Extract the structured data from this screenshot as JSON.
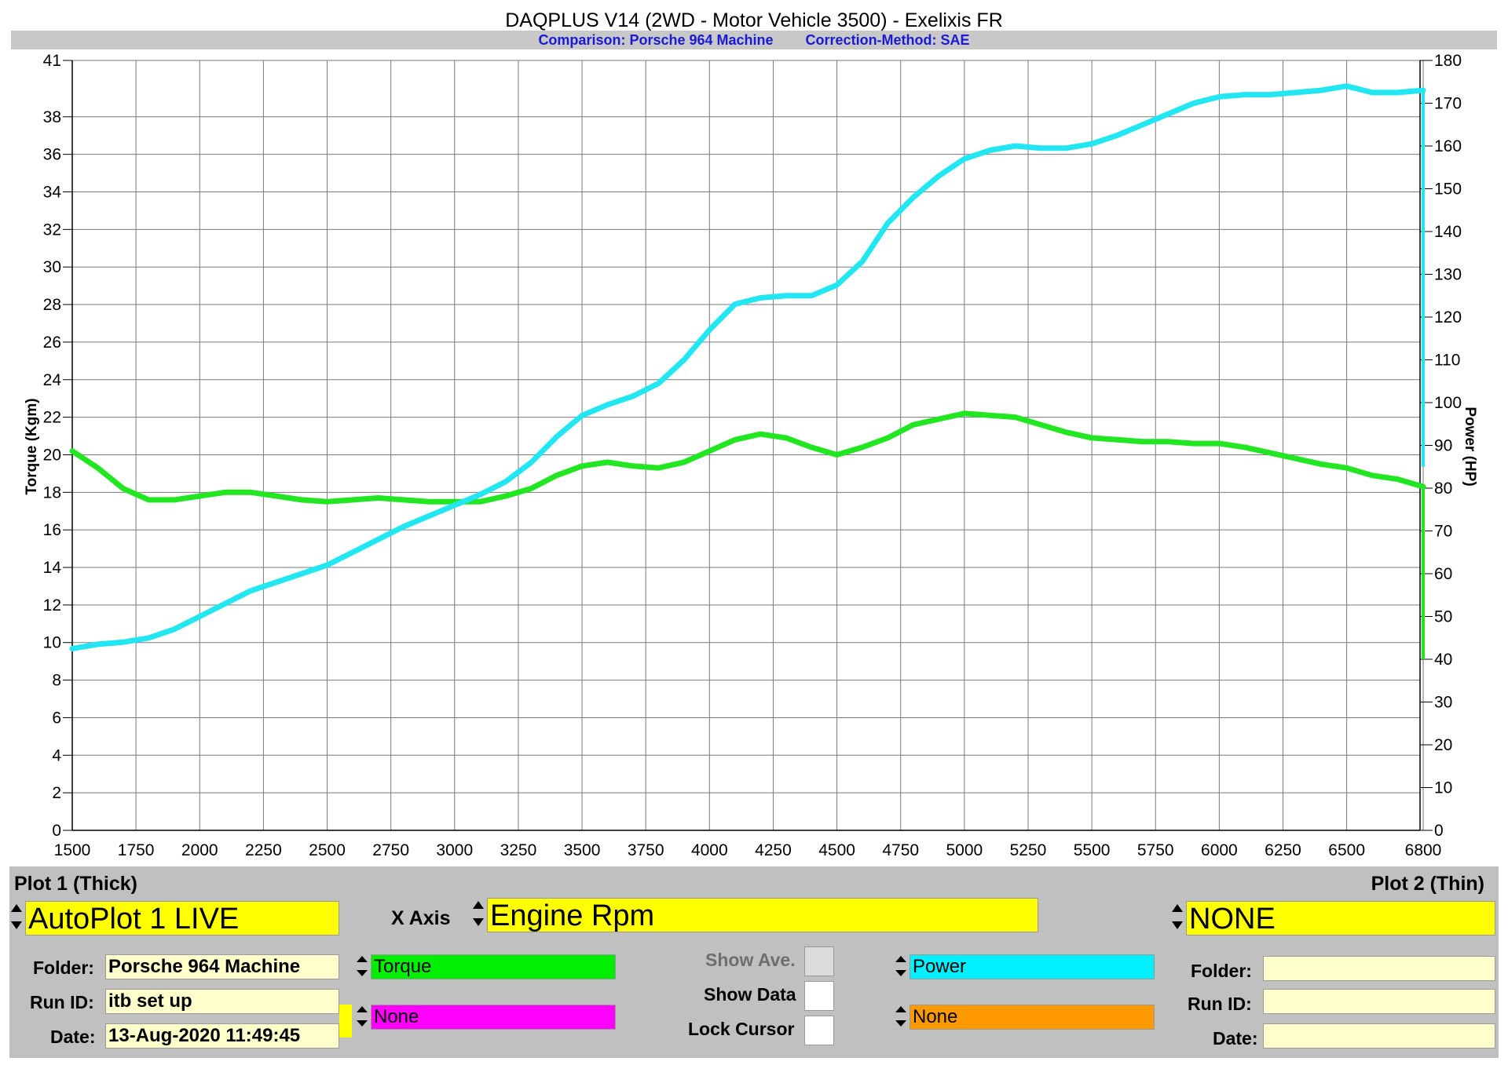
{
  "header": {
    "title": "DAQPLUS V14 (2WD - Motor Vehicle 3500) - Exelixis FR",
    "comparison": "Comparison: Porsche 964 Machine",
    "correction": "Correction-Method: SAE"
  },
  "chart_data": {
    "type": "line",
    "xlabel": "",
    "ylabel_left": "Torque (Kgm)",
    "ylabel_right": "Power (HP)",
    "xlim": [
      1500,
      6800
    ],
    "ylim_left": [
      0,
      41
    ],
    "ylim_right": [
      0,
      180
    ],
    "x_ticks": [
      1500,
      1750,
      2000,
      2250,
      2500,
      2750,
      3000,
      3250,
      3500,
      3750,
      4000,
      4250,
      4500,
      4750,
      5000,
      5250,
      5500,
      5750,
      6000,
      6250,
      6500,
      6800
    ],
    "y_left_ticks": [
      0,
      2,
      4,
      6,
      8,
      10,
      12,
      14,
      16,
      18,
      20,
      22,
      24,
      26,
      28,
      30,
      32,
      34,
      36,
      38,
      41
    ],
    "y_right_ticks": [
      0,
      10,
      20,
      30,
      40,
      50,
      60,
      70,
      80,
      90,
      100,
      110,
      120,
      130,
      140,
      150,
      160,
      170,
      180
    ],
    "grid": true,
    "series": [
      {
        "name": "Torque",
        "axis": "left",
        "color": "#22e622",
        "x": [
          1500,
          1600,
          1700,
          1800,
          1900,
          2000,
          2100,
          2200,
          2300,
          2400,
          2500,
          2600,
          2700,
          2800,
          2900,
          3000,
          3100,
          3200,
          3300,
          3400,
          3500,
          3600,
          3700,
          3800,
          3900,
          4000,
          4100,
          4200,
          4300,
          4400,
          4500,
          4600,
          4700,
          4800,
          4900,
          5000,
          5100,
          5200,
          5300,
          5400,
          5500,
          5600,
          5700,
          5800,
          5900,
          6000,
          6100,
          6200,
          6300,
          6400,
          6500,
          6600,
          6700,
          6800
        ],
        "values": [
          20.2,
          19.3,
          18.2,
          17.6,
          17.6,
          17.8,
          18.0,
          18.0,
          17.8,
          17.6,
          17.5,
          17.6,
          17.7,
          17.6,
          17.5,
          17.5,
          17.5,
          17.8,
          18.2,
          18.9,
          19.4,
          19.6,
          19.4,
          19.3,
          19.6,
          20.2,
          20.8,
          21.1,
          20.9,
          20.4,
          20.0,
          20.4,
          20.9,
          21.6,
          21.9,
          22.2,
          22.1,
          22.0,
          21.6,
          21.2,
          20.9,
          20.8,
          20.7,
          20.7,
          20.6,
          20.6,
          20.4,
          20.1,
          19.8,
          19.5,
          19.3,
          18.9,
          18.7,
          18.3
        ]
      },
      {
        "name": "Power",
        "axis": "right",
        "color": "#22e6f2",
        "x": [
          1500,
          1600,
          1700,
          1800,
          1900,
          2000,
          2100,
          2200,
          2300,
          2400,
          2500,
          2600,
          2700,
          2800,
          2900,
          3000,
          3100,
          3200,
          3300,
          3400,
          3500,
          3600,
          3700,
          3800,
          3900,
          4000,
          4100,
          4200,
          4300,
          4400,
          4500,
          4600,
          4700,
          4800,
          4900,
          5000,
          5100,
          5200,
          5300,
          5400,
          5500,
          5600,
          5700,
          5800,
          5900,
          6000,
          6100,
          6200,
          6300,
          6400,
          6500,
          6600,
          6700,
          6800
        ],
        "values": [
          42.5,
          43.5,
          44.0,
          45.0,
          47.0,
          50.0,
          53.0,
          56.0,
          58.0,
          60.0,
          62.0,
          65.0,
          68.0,
          71.0,
          73.5,
          76.0,
          78.5,
          81.5,
          86.0,
          92.0,
          97.0,
          99.5,
          101.5,
          104.5,
          110.0,
          117.0,
          123.0,
          124.5,
          125.0,
          125.0,
          127.5,
          133.0,
          142.0,
          148.0,
          153.0,
          157.0,
          159.0,
          160.0,
          159.5,
          159.5,
          160.5,
          162.5,
          165.0,
          167.5,
          170.0,
          171.5,
          172.0,
          172.0,
          172.5,
          173.0,
          174.0,
          172.5,
          172.5,
          173.0
        ]
      }
    ]
  },
  "panel": {
    "plot1_title": "Plot 1 (Thick)",
    "plot2_title": "Plot 2 (Thin)",
    "plot1_value": "AutoPlot 1 LIVE",
    "xaxis_label": "X Axis",
    "xaxis_value": "Engine Rpm",
    "plot2_value": "NONE",
    "folder_label": "Folder:",
    "runid_label": "Run ID:",
    "date_label": "Date:",
    "plot1_folder": "Porsche 964 Machine",
    "plot1_runid": "itb set up",
    "plot1_date": "13-Aug-2020 11:49:45",
    "plot2_folder": "",
    "plot2_runid": "",
    "plot2_date": "",
    "left_channel1": "Torque",
    "left_channel2": "None",
    "right_channel1": "Power",
    "right_channel2": "None",
    "show_ave": "Show Ave.",
    "show_data": "Show Data",
    "lock_cursor": "Lock Cursor",
    "colors": {
      "torque": "#00ee00",
      "none_left": "#ff00ff",
      "power": "#00f0ff",
      "none_right": "#ff9900",
      "highlight": "#ffff00",
      "field": "#ffffcc"
    }
  }
}
